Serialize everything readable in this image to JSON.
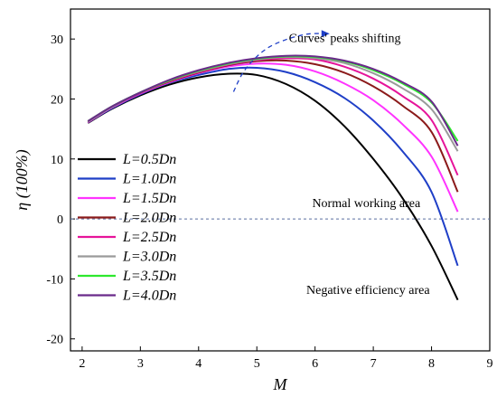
{
  "chart_data": {
    "type": "line",
    "title": "",
    "xlabel": "M",
    "ylabel": "η (100%)",
    "xlim": [
      1.8,
      9
    ],
    "ylim": [
      -22,
      35
    ],
    "xticks": [
      2,
      3,
      4,
      5,
      6,
      7,
      8,
      9
    ],
    "yticks": [
      -20,
      -10,
      0,
      10,
      20,
      30
    ],
    "grid": false,
    "legend_position": "left",
    "reference_line": {
      "y": 0,
      "style": "dashed"
    },
    "series": [
      {
        "name": "L=0.5Dn",
        "color": "#000000",
        "x": [
          2.1,
          2.5,
          3.0,
          3.5,
          4.0,
          4.5,
          5.0,
          5.5,
          6.0,
          6.5,
          7.0,
          7.5,
          8.0,
          8.45
        ],
        "y": [
          16.0,
          18.3,
          20.6,
          22.4,
          23.6,
          24.2,
          24.0,
          22.5,
          19.7,
          15.5,
          10.0,
          3.5,
          -4.5,
          -13.5
        ]
      },
      {
        "name": "L=1.0Dn",
        "color": "#1f3fc7",
        "x": [
          2.1,
          2.5,
          3.0,
          3.5,
          4.0,
          4.5,
          5.0,
          5.5,
          6.0,
          6.5,
          7.0,
          7.5,
          8.0,
          8.45
        ],
        "y": [
          16.1,
          18.4,
          20.8,
          22.7,
          24.0,
          25.0,
          25.2,
          24.5,
          22.8,
          20.2,
          16.4,
          11.3,
          4.5,
          -7.8
        ]
      },
      {
        "name": "L=1.5Dn",
        "color": "#ff33ff",
        "x": [
          2.1,
          2.5,
          3.0,
          3.5,
          4.0,
          4.5,
          5.0,
          5.5,
          6.0,
          6.5,
          7.0,
          7.5,
          8.0,
          8.45
        ],
        "y": [
          16.1,
          18.5,
          20.9,
          22.8,
          24.3,
          25.4,
          25.9,
          25.7,
          24.6,
          22.6,
          19.8,
          15.8,
          10.4,
          1.2
        ]
      },
      {
        "name": "L=2.0Dn",
        "color": "#8b1a1a",
        "x": [
          2.1,
          2.5,
          3.0,
          3.5,
          4.0,
          4.5,
          5.0,
          5.5,
          6.0,
          6.5,
          7.0,
          7.5,
          8.0,
          8.45
        ],
        "y": [
          16.2,
          18.6,
          21.0,
          22.9,
          24.4,
          25.6,
          26.3,
          26.4,
          25.8,
          24.4,
          22.1,
          18.9,
          14.5,
          4.5
        ]
      },
      {
        "name": "L=2.5Dn",
        "color": "#e6149a",
        "x": [
          2.1,
          2.5,
          3.0,
          3.5,
          4.0,
          4.5,
          5.0,
          5.5,
          6.0,
          6.5,
          7.0,
          7.5,
          8.0,
          8.45
        ],
        "y": [
          16.2,
          18.6,
          21.0,
          23.0,
          24.5,
          25.7,
          26.5,
          26.8,
          26.6,
          25.4,
          23.4,
          20.5,
          16.5,
          7.3
        ]
      },
      {
        "name": "L=3.0Dn",
        "color": "#9a9a9a",
        "x": [
          2.1,
          2.5,
          3.0,
          3.5,
          4.0,
          4.5,
          5.0,
          5.5,
          6.0,
          6.5,
          7.0,
          7.5,
          8.0,
          8.45
        ],
        "y": [
          16.2,
          18.6,
          21.1,
          23.1,
          24.6,
          25.8,
          26.6,
          27.0,
          26.8,
          26.0,
          24.3,
          21.8,
          18.3,
          11.3
        ]
      },
      {
        "name": "L=3.5Dn",
        "color": "#2ee82e",
        "x": [
          2.1,
          2.5,
          3.0,
          3.5,
          4.0,
          4.5,
          5.0,
          5.5,
          6.0,
          6.5,
          7.0,
          7.5,
          8.0,
          8.45
        ],
        "y": [
          16.3,
          18.7,
          21.1,
          23.1,
          24.7,
          25.9,
          26.7,
          27.1,
          27.0,
          26.3,
          24.8,
          22.6,
          19.4,
          13.0
        ]
      },
      {
        "name": "L=4.0Dn",
        "color": "#6a2a8a",
        "x": [
          2.1,
          2.5,
          3.0,
          3.5,
          4.0,
          4.5,
          5.0,
          5.5,
          6.0,
          6.5,
          7.0,
          7.5,
          8.0,
          8.45
        ],
        "y": [
          16.3,
          18.7,
          21.1,
          23.2,
          24.8,
          26.0,
          26.8,
          27.2,
          27.1,
          26.4,
          25.0,
          22.8,
          19.6,
          12.2
        ]
      }
    ],
    "annotations": [
      {
        "text": "Curves' peaks shifting",
        "x": 5.55,
        "y": 29.5
      },
      {
        "text": "Normal working area",
        "x": 5.95,
        "y": 2.0
      },
      {
        "text": "Negative efficiency area",
        "x": 5.85,
        "y": -12.5
      }
    ],
    "arrow": {
      "style": "dashed",
      "color": "#1f3fc7",
      "x": [
        4.6,
        4.75,
        4.95,
        5.2,
        5.5,
        5.75,
        5.95,
        6.25
      ],
      "y": [
        21.2,
        24.2,
        26.6,
        28.6,
        29.9,
        30.6,
        30.9,
        30.9
      ]
    }
  }
}
